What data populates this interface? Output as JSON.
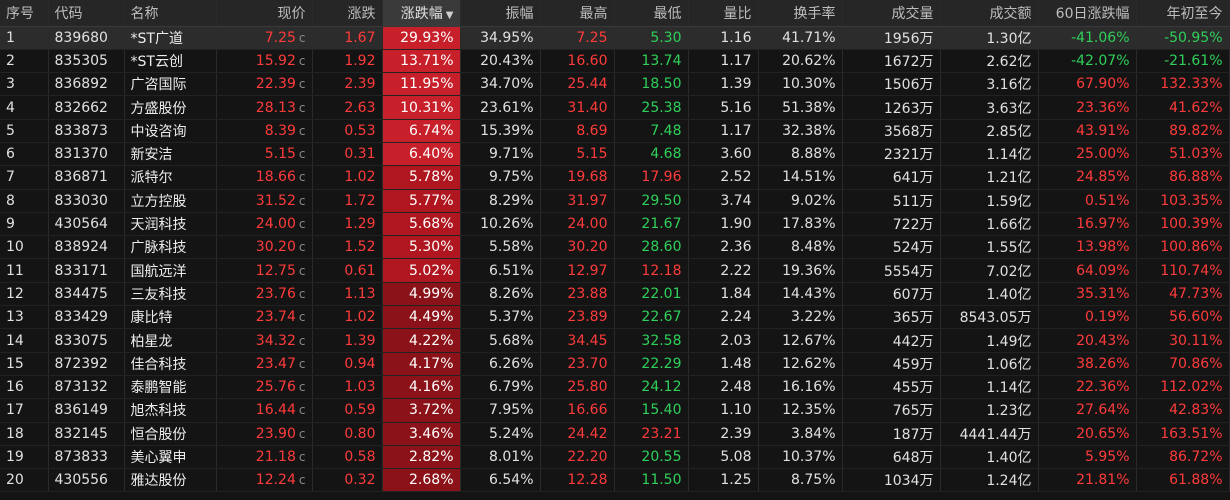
{
  "headers": [
    "序号",
    "代码",
    "名称",
    "现价",
    "涨跌",
    "涨跌幅",
    "振幅",
    "最高",
    "最低",
    "量比",
    "换手率",
    "成交量",
    "成交额",
    "60日涨跌幅",
    "年初至今"
  ],
  "sort_indicator": "▼",
  "price_suffix": "c",
  "colors": {
    "up": "#ff3b3b",
    "down": "#2fd05a",
    "bar_strong": "#c8202a",
    "bar_mid": "#b0161f",
    "bar_weak": "#8a1218"
  },
  "rows": [
    {
      "seq": "1",
      "code": "839680",
      "name": "*ST广道",
      "price": "7.25",
      "change": "1.67",
      "pct": "29.93%",
      "amp": "34.95%",
      "high": "7.25",
      "low": "5.30",
      "lb": "1.16",
      "turnover": "41.71%",
      "volume": "1956万",
      "amount": "1.30亿",
      "d60": "-41.06%",
      "ytd": "-50.95%",
      "selected": true
    },
    {
      "seq": "2",
      "code": "835305",
      "name": "*ST云创",
      "price": "15.92",
      "change": "1.92",
      "pct": "13.71%",
      "amp": "20.43%",
      "high": "16.60",
      "low": "13.74",
      "lb": "1.17",
      "turnover": "20.62%",
      "volume": "1672万",
      "amount": "2.62亿",
      "d60": "-42.07%",
      "ytd": "-21.61%"
    },
    {
      "seq": "3",
      "code": "836892",
      "name": "广咨国际",
      "price": "22.39",
      "change": "2.39",
      "pct": "11.95%",
      "amp": "34.70%",
      "high": "25.44",
      "low": "18.50",
      "lb": "1.39",
      "turnover": "10.30%",
      "volume": "1506万",
      "amount": "3.16亿",
      "d60": "67.90%",
      "ytd": "132.33%"
    },
    {
      "seq": "4",
      "code": "832662",
      "name": "方盛股份",
      "price": "28.13",
      "change": "2.63",
      "pct": "10.31%",
      "amp": "23.61%",
      "high": "31.40",
      "low": "25.38",
      "lb": "5.16",
      "turnover": "51.38%",
      "volume": "1263万",
      "amount": "3.63亿",
      "d60": "23.36%",
      "ytd": "41.62%"
    },
    {
      "seq": "5",
      "code": "833873",
      "name": "中设咨询",
      "price": "8.39",
      "change": "0.53",
      "pct": "6.74%",
      "amp": "15.39%",
      "high": "8.69",
      "low": "7.48",
      "lb": "1.17",
      "turnover": "32.38%",
      "volume": "3568万",
      "amount": "2.85亿",
      "d60": "43.91%",
      "ytd": "89.82%"
    },
    {
      "seq": "6",
      "code": "831370",
      "name": "新安洁",
      "price": "5.15",
      "change": "0.31",
      "pct": "6.40%",
      "amp": "9.71%",
      "high": "5.15",
      "low": "4.68",
      "lb": "3.60",
      "turnover": "8.88%",
      "volume": "2321万",
      "amount": "1.14亿",
      "d60": "25.00%",
      "ytd": "51.03%"
    },
    {
      "seq": "7",
      "code": "836871",
      "name": "派特尔",
      "price": "18.66",
      "change": "1.02",
      "pct": "5.78%",
      "amp": "9.75%",
      "high": "19.68",
      "low": "17.96",
      "lb": "2.52",
      "turnover": "14.51%",
      "volume": "641万",
      "amount": "1.21亿",
      "d60": "24.85%",
      "ytd": "86.88%"
    },
    {
      "seq": "8",
      "code": "833030",
      "name": "立方控股",
      "price": "31.52",
      "change": "1.72",
      "pct": "5.77%",
      "amp": "8.29%",
      "high": "31.97",
      "low": "29.50",
      "lb": "3.74",
      "turnover": "9.02%",
      "volume": "511万",
      "amount": "1.59亿",
      "d60": "0.51%",
      "ytd": "103.35%"
    },
    {
      "seq": "9",
      "code": "430564",
      "name": "天润科技",
      "price": "24.00",
      "change": "1.29",
      "pct": "5.68%",
      "amp": "10.26%",
      "high": "24.00",
      "low": "21.67",
      "lb": "1.90",
      "turnover": "17.83%",
      "volume": "722万",
      "amount": "1.66亿",
      "d60": "16.97%",
      "ytd": "100.39%"
    },
    {
      "seq": "10",
      "code": "838924",
      "name": "广脉科技",
      "price": "30.20",
      "change": "1.52",
      "pct": "5.30%",
      "amp": "5.58%",
      "high": "30.20",
      "low": "28.60",
      "lb": "2.36",
      "turnover": "8.48%",
      "volume": "524万",
      "amount": "1.55亿",
      "d60": "13.98%",
      "ytd": "100.86%"
    },
    {
      "seq": "11",
      "code": "833171",
      "name": "国航远洋",
      "price": "12.75",
      "change": "0.61",
      "pct": "5.02%",
      "amp": "6.51%",
      "high": "12.97",
      "low": "12.18",
      "lb": "2.22",
      "turnover": "19.36%",
      "volume": "5554万",
      "amount": "7.02亿",
      "d60": "64.09%",
      "ytd": "110.74%"
    },
    {
      "seq": "12",
      "code": "834475",
      "name": "三友科技",
      "price": "23.76",
      "change": "1.13",
      "pct": "4.99%",
      "amp": "8.26%",
      "high": "23.88",
      "low": "22.01",
      "lb": "1.84",
      "turnover": "14.43%",
      "volume": "607万",
      "amount": "1.40亿",
      "d60": "35.31%",
      "ytd": "47.73%"
    },
    {
      "seq": "13",
      "code": "833429",
      "name": "康比特",
      "price": "23.74",
      "change": "1.02",
      "pct": "4.49%",
      "amp": "5.37%",
      "high": "23.89",
      "low": "22.67",
      "lb": "2.24",
      "turnover": "3.22%",
      "volume": "365万",
      "amount": "8543.05万",
      "d60": "0.19%",
      "ytd": "56.60%"
    },
    {
      "seq": "14",
      "code": "833075",
      "name": "柏星龙",
      "price": "34.32",
      "change": "1.39",
      "pct": "4.22%",
      "amp": "5.68%",
      "high": "34.45",
      "low": "32.58",
      "lb": "2.03",
      "turnover": "12.67%",
      "volume": "442万",
      "amount": "1.49亿",
      "d60": "20.43%",
      "ytd": "30.11%"
    },
    {
      "seq": "15",
      "code": "872392",
      "name": "佳合科技",
      "price": "23.47",
      "change": "0.94",
      "pct": "4.17%",
      "amp": "6.26%",
      "high": "23.70",
      "low": "22.29",
      "lb": "1.48",
      "turnover": "12.62%",
      "volume": "459万",
      "amount": "1.06亿",
      "d60": "38.26%",
      "ytd": "70.86%"
    },
    {
      "seq": "16",
      "code": "873132",
      "name": "泰鹏智能",
      "price": "25.76",
      "change": "1.03",
      "pct": "4.16%",
      "amp": "6.79%",
      "high": "25.80",
      "low": "24.12",
      "lb": "2.48",
      "turnover": "16.16%",
      "volume": "455万",
      "amount": "1.14亿",
      "d60": "22.36%",
      "ytd": "112.02%"
    },
    {
      "seq": "17",
      "code": "836149",
      "name": "旭杰科技",
      "price": "16.44",
      "change": "0.59",
      "pct": "3.72%",
      "amp": "7.95%",
      "high": "16.66",
      "low": "15.40",
      "lb": "1.10",
      "turnover": "12.35%",
      "volume": "765万",
      "amount": "1.23亿",
      "d60": "27.64%",
      "ytd": "42.83%"
    },
    {
      "seq": "18",
      "code": "832145",
      "name": "恒合股份",
      "price": "23.90",
      "change": "0.80",
      "pct": "3.46%",
      "amp": "5.24%",
      "high": "24.42",
      "low": "23.21",
      "lb": "2.39",
      "turnover": "3.84%",
      "volume": "187万",
      "amount": "4441.44万",
      "d60": "20.65%",
      "ytd": "163.51%"
    },
    {
      "seq": "19",
      "code": "873833",
      "name": "美心翼申",
      "price": "21.18",
      "change": "0.58",
      "pct": "2.82%",
      "amp": "8.01%",
      "high": "22.20",
      "low": "20.55",
      "lb": "5.08",
      "turnover": "10.37%",
      "volume": "648万",
      "amount": "1.40亿",
      "d60": "5.95%",
      "ytd": "86.72%"
    },
    {
      "seq": "20",
      "code": "430556",
      "name": "雅达股份",
      "price": "12.24",
      "change": "0.32",
      "pct": "2.68%",
      "amp": "6.54%",
      "high": "12.28",
      "low": "11.50",
      "lb": "1.25",
      "turnover": "8.75%",
      "volume": "1034万",
      "amount": "1.24亿",
      "d60": "21.81%",
      "ytd": "61.88%"
    }
  ]
}
